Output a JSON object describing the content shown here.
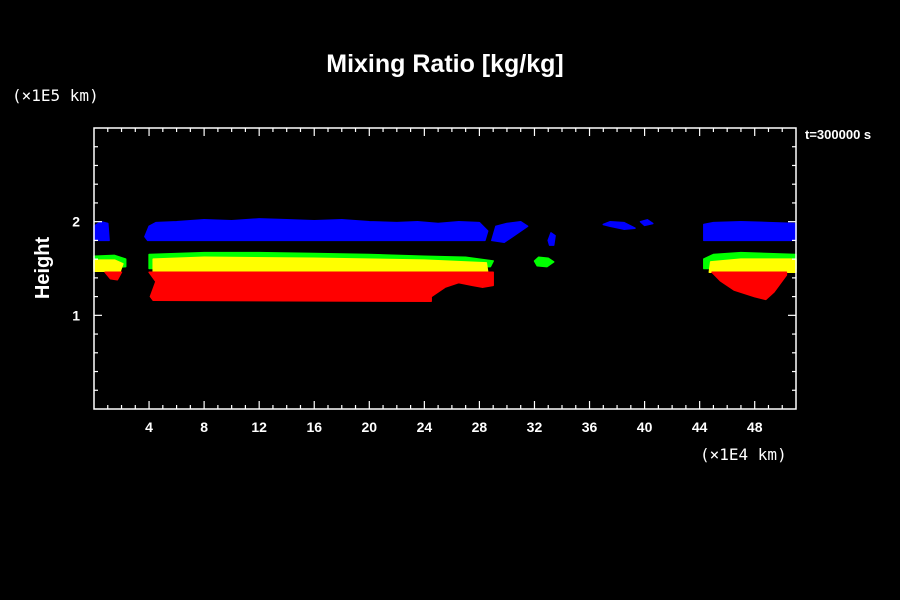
{
  "chart_data": {
    "type": "area",
    "title": "Mixing Ratio [kg/kg]",
    "ylabel": "Height",
    "x_unit_label": "(×1E4 km)",
    "y_unit_label": "(×1E5 km)",
    "time_label": "t=300000 s",
    "xlim": [
      0,
      51
    ],
    "ylim": [
      0,
      3
    ],
    "x_ticks": [
      4,
      8,
      12,
      16,
      20,
      24,
      28,
      32,
      36,
      40,
      44,
      48
    ],
    "y_ticks": [
      1,
      2
    ],
    "grid": false,
    "colors": {
      "background": "#000000",
      "axes": "#ffffff",
      "blue": "#0000ff",
      "green": "#00ff00",
      "yellow": "#ffff00",
      "red": "#ff0000"
    },
    "regions": [
      {
        "name": "blue",
        "fill": "#0000ff",
        "polygons": [
          [
            [
              0.0,
              1.95
            ],
            [
              0.5,
              2.0
            ],
            [
              1.0,
              1.98
            ],
            [
              1.1,
              1.8
            ],
            [
              0.0,
              1.8
            ]
          ],
          [
            [
              3.7,
              1.84
            ],
            [
              4.0,
              1.95
            ],
            [
              4.5,
              1.99
            ],
            [
              6,
              2.0
            ],
            [
              8,
              2.02
            ],
            [
              10,
              2.01
            ],
            [
              12,
              2.03
            ],
            [
              14,
              2.02
            ],
            [
              16,
              2.01
            ],
            [
              18,
              2.02
            ],
            [
              20,
              2.0
            ],
            [
              22,
              1.99
            ],
            [
              23.5,
              2.0
            ],
            [
              25,
              1.98
            ],
            [
              26.5,
              2.0
            ],
            [
              28,
              1.99
            ],
            [
              28.6,
              1.9
            ],
            [
              28.4,
              1.8
            ],
            [
              4.0,
              1.8
            ],
            [
              3.9,
              1.8
            ]
          ],
          [
            [
              28.9,
              1.8
            ],
            [
              29.2,
              1.95
            ],
            [
              30,
              1.98
            ],
            [
              31,
              2.0
            ],
            [
              31.5,
              1.95
            ],
            [
              30.5,
              1.85
            ],
            [
              29.8,
              1.78
            ]
          ],
          [
            [
              33.0,
              1.8
            ],
            [
              33.2,
              1.88
            ],
            [
              33.5,
              1.85
            ],
            [
              33.4,
              1.75
            ],
            [
              33.1,
              1.75
            ]
          ],
          [
            [
              37.0,
              1.97
            ],
            [
              37.5,
              2.0
            ],
            [
              38.5,
              1.99
            ],
            [
              39.3,
              1.93
            ],
            [
              38.5,
              1.92
            ],
            [
              37.5,
              1.95
            ]
          ],
          [
            [
              39.7,
              2.0
            ],
            [
              40.2,
              2.02
            ],
            [
              40.6,
              1.98
            ],
            [
              40.0,
              1.96
            ]
          ],
          [
            [
              44.3,
              1.8
            ],
            [
              44.3,
              1.97
            ],
            [
              45,
              1.99
            ],
            [
              47,
              2.0
            ],
            [
              49,
              1.99
            ],
            [
              51,
              1.98
            ],
            [
              51,
              1.8
            ]
          ]
        ]
      },
      {
        "name": "green",
        "fill": "#00ff00",
        "polygons": [
          [
            [
              0.0,
              1.5
            ],
            [
              0.0,
              1.63
            ],
            [
              1.5,
              1.64
            ],
            [
              2.3,
              1.6
            ],
            [
              2.3,
              1.52
            ]
          ],
          [
            [
              4.0,
              1.5
            ],
            [
              4.0,
              1.65
            ],
            [
              8,
              1.67
            ],
            [
              12,
              1.67
            ],
            [
              16,
              1.66
            ],
            [
              20,
              1.65
            ],
            [
              24,
              1.63
            ],
            [
              27,
              1.62
            ],
            [
              29,
              1.58
            ],
            [
              28.8,
              1.52
            ]
          ],
          [
            [
              32.0,
              1.58
            ],
            [
              32.3,
              1.62
            ],
            [
              33.0,
              1.61
            ],
            [
              33.4,
              1.57
            ],
            [
              32.9,
              1.52
            ],
            [
              32.2,
              1.53
            ]
          ],
          [
            [
              44.3,
              1.5
            ],
            [
              44.3,
              1.6
            ],
            [
              45,
              1.65
            ],
            [
              47,
              1.67
            ],
            [
              51,
              1.65
            ],
            [
              51,
              1.5
            ]
          ]
        ]
      },
      {
        "name": "yellow",
        "fill": "#ffff00",
        "polygons": [
          [
            [
              0.0,
              1.47
            ],
            [
              0.0,
              1.59
            ],
            [
              1.5,
              1.59
            ],
            [
              2.1,
              1.55
            ],
            [
              1.9,
              1.47
            ]
          ],
          [
            [
              4.3,
              1.46
            ],
            [
              4.3,
              1.6
            ],
            [
              8,
              1.62
            ],
            [
              16,
              1.61
            ],
            [
              24,
              1.59
            ],
            [
              28.5,
              1.56
            ],
            [
              28.6,
              1.46
            ]
          ],
          [
            [
              44.7,
              1.46
            ],
            [
              44.8,
              1.57
            ],
            [
              47,
              1.6
            ],
            [
              51,
              1.6
            ],
            [
              51,
              1.46
            ]
          ]
        ]
      },
      {
        "name": "red",
        "fill": "#ff0000",
        "polygons": [
          [
            [
              0.8,
              1.46
            ],
            [
              1.2,
              1.39
            ],
            [
              1.7,
              1.38
            ],
            [
              2.0,
              1.46
            ]
          ],
          [
            [
              4.0,
              1.46
            ],
            [
              4.5,
              1.36
            ],
            [
              4.1,
              1.2
            ],
            [
              4.3,
              1.16
            ],
            [
              24.5,
              1.15
            ],
            [
              24.5,
              1.2
            ],
            [
              25.5,
              1.3
            ],
            [
              26.5,
              1.35
            ],
            [
              27.5,
              1.32
            ],
            [
              28.2,
              1.3
            ],
            [
              29.0,
              1.32
            ],
            [
              29.0,
              1.46
            ]
          ],
          [
            [
              44.9,
              1.46
            ],
            [
              45.5,
              1.37
            ],
            [
              46.5,
              1.27
            ],
            [
              48.0,
              1.2
            ],
            [
              48.8,
              1.17
            ],
            [
              49.4,
              1.25
            ],
            [
              50.3,
              1.43
            ],
            [
              50.3,
              1.46
            ]
          ]
        ]
      }
    ]
  }
}
